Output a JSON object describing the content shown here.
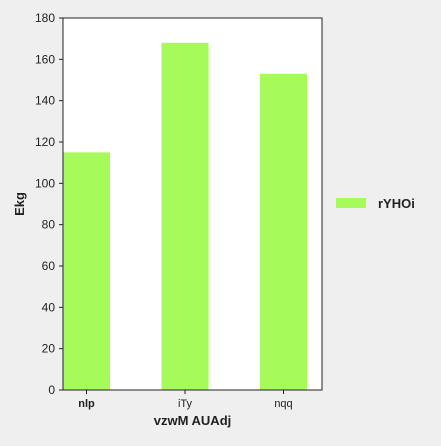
{
  "chart_data": {
    "type": "bar",
    "title": "",
    "xlabel": "vzwM AUAdj",
    "ylabel": "Ekg",
    "categories": [
      "nlp",
      "iTy",
      "nqq"
    ],
    "series": [
      {
        "name": "rYHOi",
        "values": [
          115,
          168,
          153
        ],
        "color": "#a6fb5a"
      }
    ],
    "ylim": [
      0,
      180
    ],
    "yticks": [
      0,
      20,
      40,
      60,
      80,
      100,
      120,
      140,
      160,
      180
    ],
    "grid": false,
    "legend": "right",
    "first_category_label_bold": true
  }
}
